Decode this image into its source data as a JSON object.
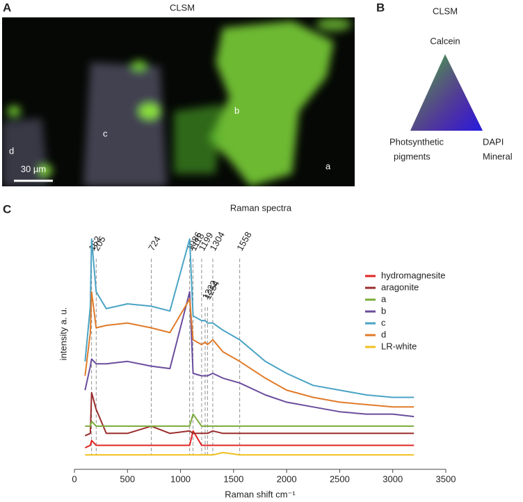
{
  "panel_a": {
    "letter": "A",
    "title": "CLSM",
    "labels": [
      "a",
      "b",
      "c",
      "d"
    ],
    "scale_bar": "30 µm"
  },
  "panel_b": {
    "letter": "B",
    "title": "CLSM",
    "top": "Calcein",
    "bottom_left": [
      "Photsynthetic",
      "pigments"
    ],
    "bottom_right": [
      "DAPI",
      "Mineral"
    ]
  },
  "chart_data": {
    "type": "line",
    "letter": "C",
    "title": "Raman spectra",
    "x_label": "Raman shift cm⁻¹",
    "y_label": "intensity a. u.",
    "xlim": [
      0,
      3500
    ],
    "xticks": [
      0,
      500,
      1000,
      1500,
      2000,
      2500,
      3000,
      3500
    ],
    "ylim": [
      0,
      100
    ],
    "peaks": [
      162,
      205,
      724,
      1086,
      1118,
      1199,
      1304,
      1558
    ],
    "peaks_inline": [
      1232,
      1254
    ],
    "x": [
      100,
      150,
      162,
      205,
      300,
      500,
      724,
      900,
      1086,
      1118,
      1199,
      1232,
      1254,
      1304,
      1400,
      1558,
      1800,
      2000,
      2250,
      2500,
      2750,
      3000,
      3200
    ],
    "series": [
      {
        "name": "hydromagnesite",
        "color": "#e02424",
        "values": [
          9,
          10,
          12,
          10,
          10,
          10,
          10,
          10,
          10,
          16,
          10,
          10,
          10,
          10,
          10,
          10,
          10,
          10,
          10,
          10,
          10,
          10,
          10
        ]
      },
      {
        "name": "aragonite",
        "color": "#9b2d2d",
        "values": [
          14,
          15,
          32,
          25,
          15,
          15,
          18,
          15,
          16,
          15,
          15,
          15,
          15,
          16,
          15,
          15,
          15,
          15,
          15,
          15,
          15,
          15,
          15
        ]
      },
      {
        "name": "a",
        "color": "#7aab3a",
        "values": [
          18,
          18,
          20,
          18,
          18,
          18,
          18,
          18,
          18,
          23,
          18,
          18,
          18,
          18,
          18,
          18,
          18,
          18,
          18,
          18,
          18,
          18,
          18
        ]
      },
      {
        "name": "b",
        "color": "#6a4c9c",
        "values": [
          33,
          43,
          46,
          44,
          44,
          45,
          43,
          42,
          74,
          40,
          39,
          39,
          39,
          40,
          38,
          36,
          31,
          28,
          26,
          24,
          23,
          23,
          22
        ]
      },
      {
        "name": "c",
        "color": "#4aa3c4",
        "values": [
          45,
          68,
          96,
          74,
          67,
          69,
          68,
          66,
          96,
          64,
          62,
          62,
          61,
          61,
          58,
          54,
          45,
          40,
          35,
          33,
          31,
          30,
          30
        ]
      },
      {
        "name": "d",
        "color": "#e07b2a",
        "values": [
          39,
          57,
          74,
          59,
          60,
          61,
          59,
          57,
          71,
          54,
          52,
          53,
          52,
          54,
          49,
          45,
          38,
          33,
          30,
          28,
          27,
          26,
          26
        ]
      },
      {
        "name": "LR-white",
        "color": "#f0c020",
        "values": [
          6,
          6,
          6,
          6,
          6,
          6,
          6,
          6,
          6,
          6,
          6,
          6,
          6,
          6,
          7,
          6,
          6,
          6,
          6,
          6,
          6,
          6,
          6
        ]
      }
    ]
  }
}
